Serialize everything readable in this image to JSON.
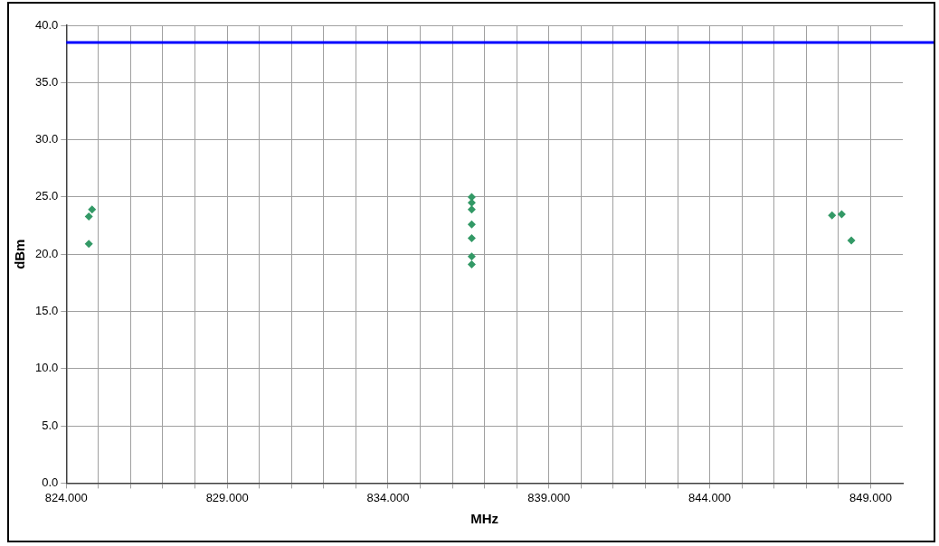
{
  "chart_data": {
    "type": "scatter",
    "xlabel": "MHz",
    "ylabel": "dBm",
    "xlim": [
      824,
      850
    ],
    "ylim": [
      0,
      40
    ],
    "xticks": [
      {
        "value": 824,
        "label": "824.000"
      },
      {
        "value": 825,
        "label": null
      },
      {
        "value": 826,
        "label": null
      },
      {
        "value": 827,
        "label": null
      },
      {
        "value": 828,
        "label": null
      },
      {
        "value": 829,
        "label": "829.000"
      },
      {
        "value": 830,
        "label": null
      },
      {
        "value": 831,
        "label": null
      },
      {
        "value": 832,
        "label": null
      },
      {
        "value": 833,
        "label": null
      },
      {
        "value": 834,
        "label": "834.000"
      },
      {
        "value": 835,
        "label": null
      },
      {
        "value": 836,
        "label": null
      },
      {
        "value": 837,
        "label": null
      },
      {
        "value": 838,
        "label": null
      },
      {
        "value": 839,
        "label": "839.000"
      },
      {
        "value": 840,
        "label": null
      },
      {
        "value": 841,
        "label": null
      },
      {
        "value": 842,
        "label": null
      },
      {
        "value": 843,
        "label": null
      },
      {
        "value": 844,
        "label": "844.000"
      },
      {
        "value": 845,
        "label": null
      },
      {
        "value": 846,
        "label": null
      },
      {
        "value": 847,
        "label": null
      },
      {
        "value": 848,
        "label": null
      },
      {
        "value": 849,
        "label": "849.000"
      }
    ],
    "yticks": [
      {
        "value": 0,
        "label": "0.0"
      },
      {
        "value": 5,
        "label": "5.0"
      },
      {
        "value": 10,
        "label": "10.0"
      },
      {
        "value": 15,
        "label": "15.0"
      },
      {
        "value": 20,
        "label": "20.0"
      },
      {
        "value": 25,
        "label": "25.0"
      },
      {
        "value": 30,
        "label": "30.0"
      },
      {
        "value": 35,
        "label": "35.0"
      },
      {
        "value": 40,
        "label": "40.0"
      }
    ],
    "series": [
      {
        "color": "#339966",
        "x": [
          824.8,
          824.7,
          824.7,
          836.6,
          836.6,
          836.6,
          836.6,
          836.6,
          836.6,
          836.6,
          847.8,
          848.1,
          848.4
        ],
        "values": [
          23.9,
          23.3,
          20.9,
          25.0,
          24.5,
          23.9,
          22.6,
          21.4,
          19.8,
          19.1,
          23.4,
          23.5,
          21.2
        ]
      }
    ],
    "ref_lines": [
      {
        "axis": "y",
        "value": 38.5,
        "color": "#0000ff"
      }
    ],
    "marker": "diamond",
    "grid": true,
    "legend": false
  }
}
